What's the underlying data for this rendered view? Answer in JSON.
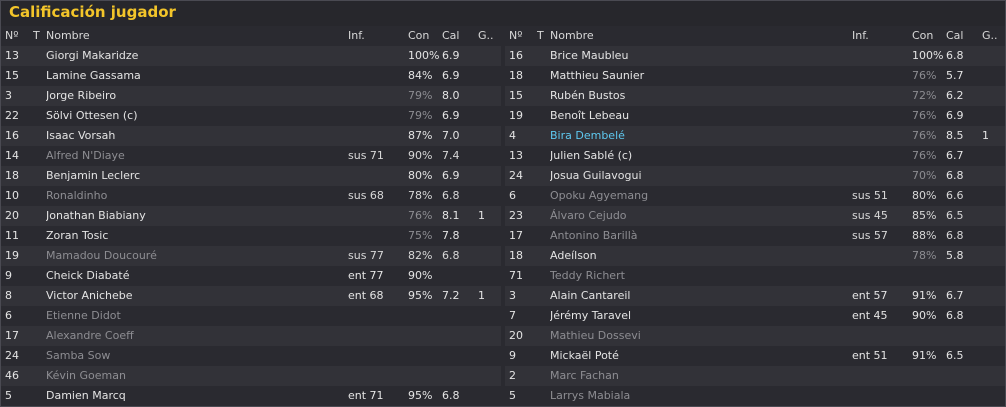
{
  "window_title": "Calificación jugador",
  "columns": {
    "num": "Nº",
    "t": "T",
    "name": "Nombre",
    "inf": "Inf.",
    "con": "Con",
    "cal": "Cal",
    "g": "G.."
  },
  "left_rows": [
    {
      "num": "13",
      "icon": "",
      "name": "Giorgi Makaridze",
      "inf": "",
      "con": "100%",
      "cal": "6.9",
      "g": "",
      "dim": false
    },
    {
      "num": "15",
      "icon": "",
      "name": "Lamine Gassama",
      "inf": "",
      "con": "84%",
      "cal": "6.9",
      "g": "",
      "dim": false
    },
    {
      "num": "3",
      "icon": "",
      "name": "Jorge Ribeiro",
      "inf": "",
      "con": "79%",
      "cal": "8.0",
      "g": "",
      "dim": false
    },
    {
      "num": "22",
      "icon": "",
      "name": "Sölvi Ottesen (c)",
      "inf": "",
      "con": "79%",
      "cal": "6.9",
      "g": "",
      "dim": false
    },
    {
      "num": "16",
      "icon": "",
      "name": "Isaac Vorsah",
      "inf": "",
      "con": "87%",
      "cal": "7.0",
      "g": "",
      "dim": false
    },
    {
      "num": "14",
      "icon": "yellow-card",
      "name": "Alfred N'Diaye",
      "inf": "sus 71",
      "con": "90%",
      "cal": "7.4",
      "g": "",
      "dim": true
    },
    {
      "num": "18",
      "icon": "",
      "name": "Benjamin Leclerc",
      "inf": "",
      "con": "80%",
      "cal": "6.9",
      "g": "",
      "dim": false
    },
    {
      "num": "10",
      "icon": "",
      "name": "Ronaldinho",
      "inf": "sus 68",
      "con": "78%",
      "cal": "6.8",
      "g": "",
      "dim": true
    },
    {
      "num": "20",
      "icon": "",
      "name": "Jonathan Biabiany",
      "inf": "",
      "con": "76%",
      "cal": "8.1",
      "g": "1",
      "dim": false
    },
    {
      "num": "11",
      "icon": "yellow-card",
      "name": "Zoran Tosic",
      "inf": "",
      "con": "75%",
      "cal": "7.8",
      "g": "",
      "dim": false
    },
    {
      "num": "19",
      "icon": "",
      "name": "Mamadou Doucouré",
      "inf": "sus 77",
      "con": "82%",
      "cal": "6.8",
      "g": "",
      "dim": true
    },
    {
      "num": "9",
      "icon": "",
      "name": "Cheick Diabaté",
      "inf": "ent 77",
      "con": "90%",
      "cal": "",
      "g": "",
      "dim": false
    },
    {
      "num": "8",
      "icon": "",
      "name": "Victor Anichebe",
      "inf": "ent 68",
      "con": "95%",
      "cal": "7.2",
      "g": "1",
      "dim": false
    },
    {
      "num": "6",
      "icon": "",
      "name": "Etienne Didot",
      "inf": "",
      "con": "",
      "cal": "",
      "g": "",
      "dim": true
    },
    {
      "num": "17",
      "icon": "",
      "name": "Alexandre Coeff",
      "inf": "",
      "con": "",
      "cal": "",
      "g": "",
      "dim": true
    },
    {
      "num": "24",
      "icon": "",
      "name": "Samba Sow",
      "inf": "",
      "con": "",
      "cal": "",
      "g": "",
      "dim": true
    },
    {
      "num": "46",
      "icon": "",
      "name": "Kévin Goeman",
      "inf": "",
      "con": "",
      "cal": "",
      "g": "",
      "dim": true
    },
    {
      "num": "5",
      "icon": "",
      "name": "Damien Marcq",
      "inf": "ent 71",
      "con": "95%",
      "cal": "6.8",
      "g": "",
      "dim": false
    }
  ],
  "right_rows": [
    {
      "num": "16",
      "icon": "",
      "name": "Brice Maubleu",
      "inf": "",
      "con": "100%",
      "cal": "6.8",
      "g": "",
      "dim": false
    },
    {
      "num": "18",
      "icon": "yellow-card",
      "name": "Matthieu Saunier",
      "inf": "",
      "con": "76%",
      "cal": "5.7",
      "g": "",
      "dim": false
    },
    {
      "num": "15",
      "icon": "yellow-card",
      "name": "Rubén Bustos",
      "inf": "",
      "con": "72%",
      "cal": "6.2",
      "g": "",
      "dim": false
    },
    {
      "num": "19",
      "icon": "plus-badge",
      "name": "Benoît Lebeau",
      "inf": "",
      "con": "76%",
      "cal": "6.9",
      "g": "",
      "dim": false
    },
    {
      "num": "4",
      "icon": "star",
      "name": "Bira Dembelé",
      "inf": "",
      "con": "76%",
      "cal": "8.5",
      "g": "1",
      "dim": false,
      "star": true
    },
    {
      "num": "13",
      "icon": "yellow-card",
      "name": "Julien Sablé (c)",
      "inf": "",
      "con": "76%",
      "cal": "6.7",
      "g": "",
      "dim": false
    },
    {
      "num": "24",
      "icon": "",
      "name": "Josua Guilavogui",
      "inf": "",
      "con": "70%",
      "cal": "6.8",
      "g": "",
      "dim": false
    },
    {
      "num": "6",
      "icon": "",
      "name": "Opoku Agyemang",
      "inf": "sus 51",
      "con": "80%",
      "cal": "6.6",
      "g": "",
      "dim": true
    },
    {
      "num": "23",
      "icon": "",
      "name": "Álvaro Cejudo",
      "inf": "sus 45",
      "con": "85%",
      "cal": "6.5",
      "g": "",
      "dim": true
    },
    {
      "num": "17",
      "icon": "",
      "name": "Antonino Barillà",
      "inf": "sus 57",
      "con": "88%",
      "cal": "6.8",
      "g": "",
      "dim": true
    },
    {
      "num": "18",
      "icon": "",
      "name": "Adeílson",
      "inf": "",
      "con": "78%",
      "cal": "5.8",
      "g": "",
      "dim": false
    },
    {
      "num": "71",
      "icon": "",
      "name": "Teddy Richert",
      "inf": "",
      "con": "",
      "cal": "",
      "g": "",
      "dim": true
    },
    {
      "num": "3",
      "icon": "",
      "name": "Alain Cantareil",
      "inf": "ent 57",
      "con": "91%",
      "cal": "6.7",
      "g": "",
      "dim": false
    },
    {
      "num": "7",
      "icon": "",
      "name": "Jérémy Taravel",
      "inf": "ent 45",
      "con": "90%",
      "cal": "6.8",
      "g": "",
      "dim": false
    },
    {
      "num": "20",
      "icon": "",
      "name": "Mathieu Dossevi",
      "inf": "",
      "con": "",
      "cal": "",
      "g": "",
      "dim": true
    },
    {
      "num": "9",
      "icon": "yellow-card",
      "name": "Mickaël Poté",
      "inf": "ent 51",
      "con": "91%",
      "cal": "6.5",
      "g": "",
      "dim": false
    },
    {
      "num": "2",
      "icon": "",
      "name": "Marc Fachan",
      "inf": "",
      "con": "",
      "cal": "",
      "g": "",
      "dim": true
    },
    {
      "num": "5",
      "icon": "",
      "name": "Larrys Mabiala",
      "inf": "",
      "con": "",
      "cal": "",
      "g": "",
      "dim": true
    }
  ]
}
